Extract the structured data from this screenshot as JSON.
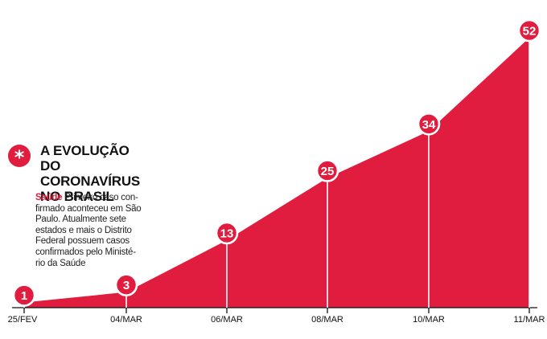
{
  "chart_data": {
    "type": "area",
    "title": "A EVOLUÇÃO DO\nCORONAVÍRUS\nNO BRASIL",
    "categories": [
      "25/FEV",
      "04/MAR",
      "06/MAR",
      "08/MAR",
      "10/MAR",
      "11/MAR"
    ],
    "values": [
      1,
      3,
      13,
      25,
      34,
      52
    ],
    "ylim": [
      0,
      52
    ],
    "grid": false,
    "legend": "none"
  },
  "description": {
    "keyword": "Saúde",
    "lines": [
      " Primeiro caso con-",
      "firmado aconteceu em São",
      "Paulo. Atualmente sete",
      "estados e mais o Distrito",
      "Federal possuem casos",
      "confirmados pelo Ministé-",
      "rio da Saúde"
    ]
  },
  "colors": {
    "area": "#e11d3f",
    "text": "#111111",
    "badge_fill": "#e11d3f",
    "badge_stroke": "#ffffff"
  },
  "badge_icon": "asterisk-icon",
  "badge_glyph": "*"
}
